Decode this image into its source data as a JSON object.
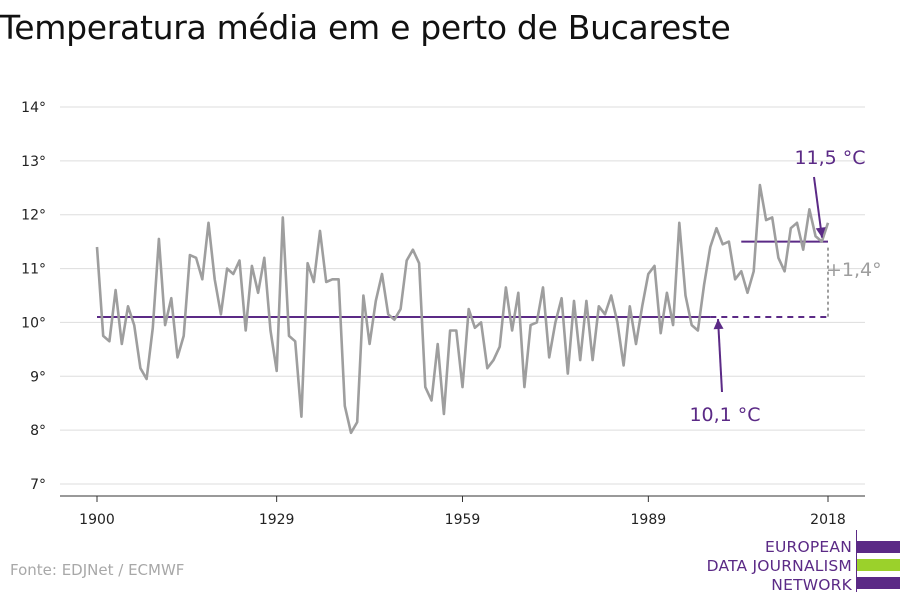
{
  "title": "Temperatura média em e perto de Bucareste",
  "source": "Fonte: EDJNet / ECMWF",
  "logo": {
    "lines": [
      "EUROPEAN",
      "DATA JOURNALISM",
      "NETWORK"
    ],
    "colors": {
      "purple": "#5b2a86",
      "green": "#9bd12b"
    }
  },
  "colors": {
    "series": "#9e9e9e",
    "baseline": "#5b2a86",
    "annotation": "#5b2a86",
    "difference": "#9e9e9e",
    "grid": "#dddddd"
  },
  "chart_data": {
    "type": "line",
    "title": "Temperatura média em e perto de Bucareste",
    "xlabel": "",
    "ylabel": "",
    "xlim": [
      1900,
      2018
    ],
    "ylim": [
      7,
      14
    ],
    "x_ticks": [
      1900,
      1929,
      1959,
      1989,
      2018
    ],
    "y_ticks": [
      7,
      8,
      9,
      10,
      11,
      12,
      13,
      14
    ],
    "y_tick_labels": [
      "7°",
      "8°",
      "9°",
      "10°",
      "11°",
      "12°",
      "13°",
      "14°"
    ],
    "grid": true,
    "series": [
      {
        "x": [
          1900,
          1901,
          1902,
          1903,
          1904,
          1905,
          1906,
          1907,
          1908,
          1909,
          1910,
          1911,
          1912,
          1913,
          1914,
          1915,
          1916,
          1917,
          1918,
          1919,
          1920,
          1921,
          1922,
          1923,
          1924,
          1925,
          1926,
          1927,
          1928,
          1929,
          1930,
          1931,
          1932,
          1933,
          1934,
          1935,
          1936,
          1937,
          1938,
          1939,
          1940,
          1941,
          1942,
          1943,
          1944,
          1945,
          1946,
          1947,
          1948,
          1949,
          1950,
          1951,
          1952,
          1953,
          1954,
          1955,
          1956,
          1957,
          1958,
          1959,
          1960,
          1961,
          1962,
          1963,
          1964,
          1965,
          1966,
          1967,
          1968,
          1969,
          1970,
          1971,
          1972,
          1973,
          1974,
          1975,
          1976,
          1977,
          1978,
          1979,
          1980,
          1981,
          1982,
          1983,
          1984,
          1985,
          1986,
          1987,
          1988,
          1989,
          1990,
          1991,
          1992,
          1993,
          1994,
          1995,
          1996,
          1997,
          1998,
          1999,
          2000,
          2001,
          2002,
          2003,
          2004,
          2005,
          2006,
          2007,
          2008,
          2009,
          2010,
          2011,
          2012,
          2013,
          2014,
          2015,
          2016,
          2017,
          2018
        ],
        "values": [
          11.4,
          9.75,
          9.65,
          10.6,
          9.6,
          10.3,
          9.95,
          9.15,
          8.95,
          9.9,
          11.55,
          9.95,
          10.45,
          9.35,
          9.75,
          11.25,
          11.2,
          10.8,
          11.85,
          10.8,
          10.15,
          11.0,
          10.9,
          11.15,
          9.85,
          11.05,
          10.55,
          11.2,
          9.85,
          9.1,
          11.95,
          9.75,
          9.65,
          8.25,
          11.1,
          10.75,
          11.7,
          10.75,
          10.8,
          10.8,
          8.45,
          7.95,
          8.15,
          10.5,
          9.6,
          10.4,
          10.9,
          10.15,
          10.05,
          10.25,
          11.15,
          11.35,
          11.1,
          8.8,
          8.55,
          9.6,
          8.3,
          9.85,
          9.85,
          8.8,
          10.25,
          9.9,
          10.0,
          9.15,
          9.3,
          9.55,
          10.65,
          9.85,
          10.55,
          8.8,
          9.95,
          10.0,
          10.65,
          9.35,
          10.0,
          10.45,
          9.05,
          10.4,
          9.3,
          10.4,
          9.3,
          10.3,
          10.15,
          10.5,
          10.0,
          9.2,
          10.3,
          9.6,
          10.3,
          10.9,
          11.05,
          9.8,
          10.55,
          9.95,
          11.85,
          10.5,
          9.95,
          9.85,
          10.7,
          11.4,
          11.75,
          11.45,
          11.5,
          10.8,
          10.95,
          10.55,
          10.95,
          12.55,
          11.9,
          11.95,
          11.2,
          10.95,
          11.75,
          11.85,
          11.35,
          12.1,
          11.6,
          11.5,
          11.85
        ]
      }
    ],
    "reference_lines": [
      {
        "value": 10.1,
        "x_start": 1900,
        "x_end": 1999,
        "style": "solid"
      },
      {
        "value": 10.1,
        "x_start": 1999,
        "x_end": 2018,
        "style": "dashed"
      },
      {
        "value": 11.5,
        "x_start": 2004,
        "x_end": 2018,
        "style": "solid"
      }
    ],
    "annotations": [
      {
        "text": "11,5 °C",
        "x": 2018,
        "y": 11.5
      },
      {
        "text": "10,1 °C",
        "x": 1999,
        "y": 10.1
      },
      {
        "text": "+1,4°",
        "x": 2018,
        "y": 10.8
      }
    ]
  }
}
